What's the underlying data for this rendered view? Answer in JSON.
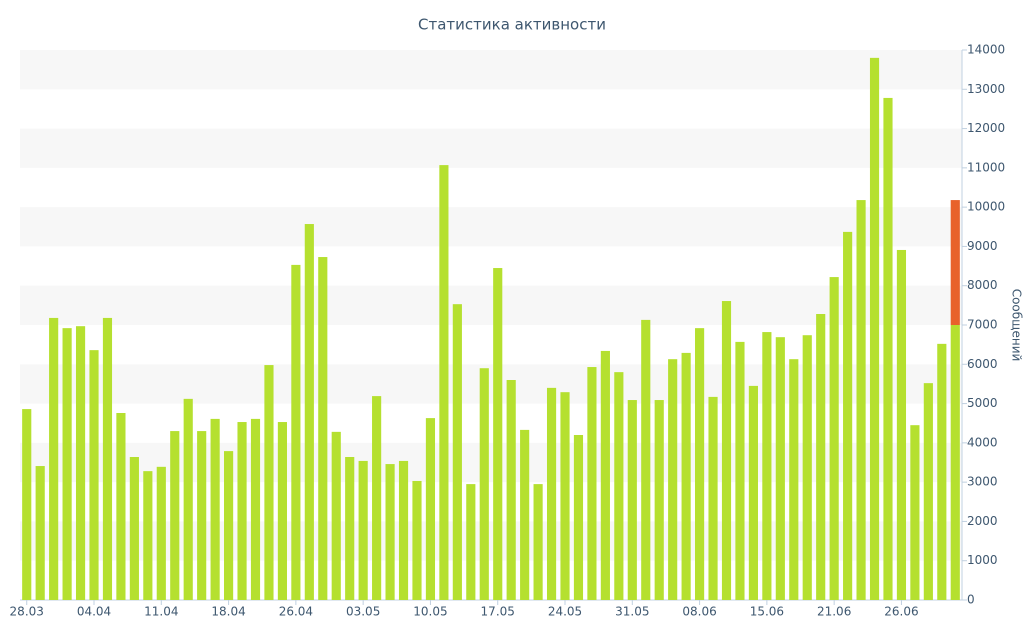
{
  "chart_data": {
    "type": "bar",
    "title": "Статистика активности",
    "y_axis_label": "Сообщений",
    "categories": [
      "28.03",
      null,
      null,
      null,
      null,
      "04.04",
      null,
      null,
      null,
      null,
      "11.04",
      null,
      null,
      null,
      null,
      "18.04",
      null,
      null,
      null,
      null,
      "26.04",
      null,
      null,
      null,
      null,
      "03.05",
      null,
      null,
      null,
      null,
      "10.05",
      null,
      null,
      null,
      null,
      "17.05",
      null,
      null,
      null,
      null,
      "24.05",
      null,
      null,
      null,
      null,
      "31.05",
      null,
      null,
      null,
      null,
      "08.06",
      null,
      null,
      null,
      null,
      "15.06",
      null,
      null,
      null,
      null,
      "21.06",
      null,
      null,
      null,
      null,
      "26.06",
      null,
      null,
      null,
      null
    ],
    "series": [
      {
        "color": "#b5e02f",
        "values": [
          4860,
          3410,
          7180,
          6920,
          6970,
          6360,
          7180,
          4760,
          3640,
          3280,
          3390,
          4300,
          5120,
          4300,
          4610,
          3790,
          4530,
          4610,
          5980,
          4530,
          8530,
          9570,
          8730,
          4280,
          3640,
          3540,
          5190,
          3460,
          3540,
          3030,
          4630,
          11070,
          7530,
          2950,
          5900,
          8450,
          5600,
          4330,
          2950,
          5400,
          5290,
          4200,
          5930,
          6340,
          5800,
          5090,
          7130,
          5090,
          6130,
          6290,
          6920,
          5170,
          7610,
          6570,
          5450,
          6820,
          6690,
          6130,
          6740,
          7280,
          8220,
          9370,
          10180,
          13800,
          12780,
          8910,
          4450,
          5520,
          6520,
          7000
        ]
      },
      {
        "color": "#e8622b",
        "values": [
          null,
          null,
          null,
          null,
          null,
          null,
          null,
          null,
          null,
          null,
          null,
          null,
          null,
          null,
          null,
          null,
          null,
          null,
          null,
          null,
          null,
          null,
          null,
          null,
          null,
          null,
          null,
          null,
          null,
          null,
          null,
          null,
          null,
          null,
          null,
          null,
          null,
          null,
          null,
          null,
          null,
          null,
          null,
          null,
          null,
          null,
          null,
          null,
          null,
          null,
          null,
          null,
          null,
          null,
          null,
          null,
          null,
          null,
          null,
          null,
          null,
          null,
          null,
          null,
          null,
          null,
          null,
          null,
          null,
          3180
        ]
      }
    ],
    "ylim": [
      0,
      14000
    ],
    "yticks": [
      0,
      1000,
      2000,
      3000,
      4000,
      5000,
      6000,
      7000,
      8000,
      9000,
      10000,
      11000,
      12000,
      13000,
      14000
    ],
    "y_axis_side": "right",
    "grid": "bands"
  }
}
